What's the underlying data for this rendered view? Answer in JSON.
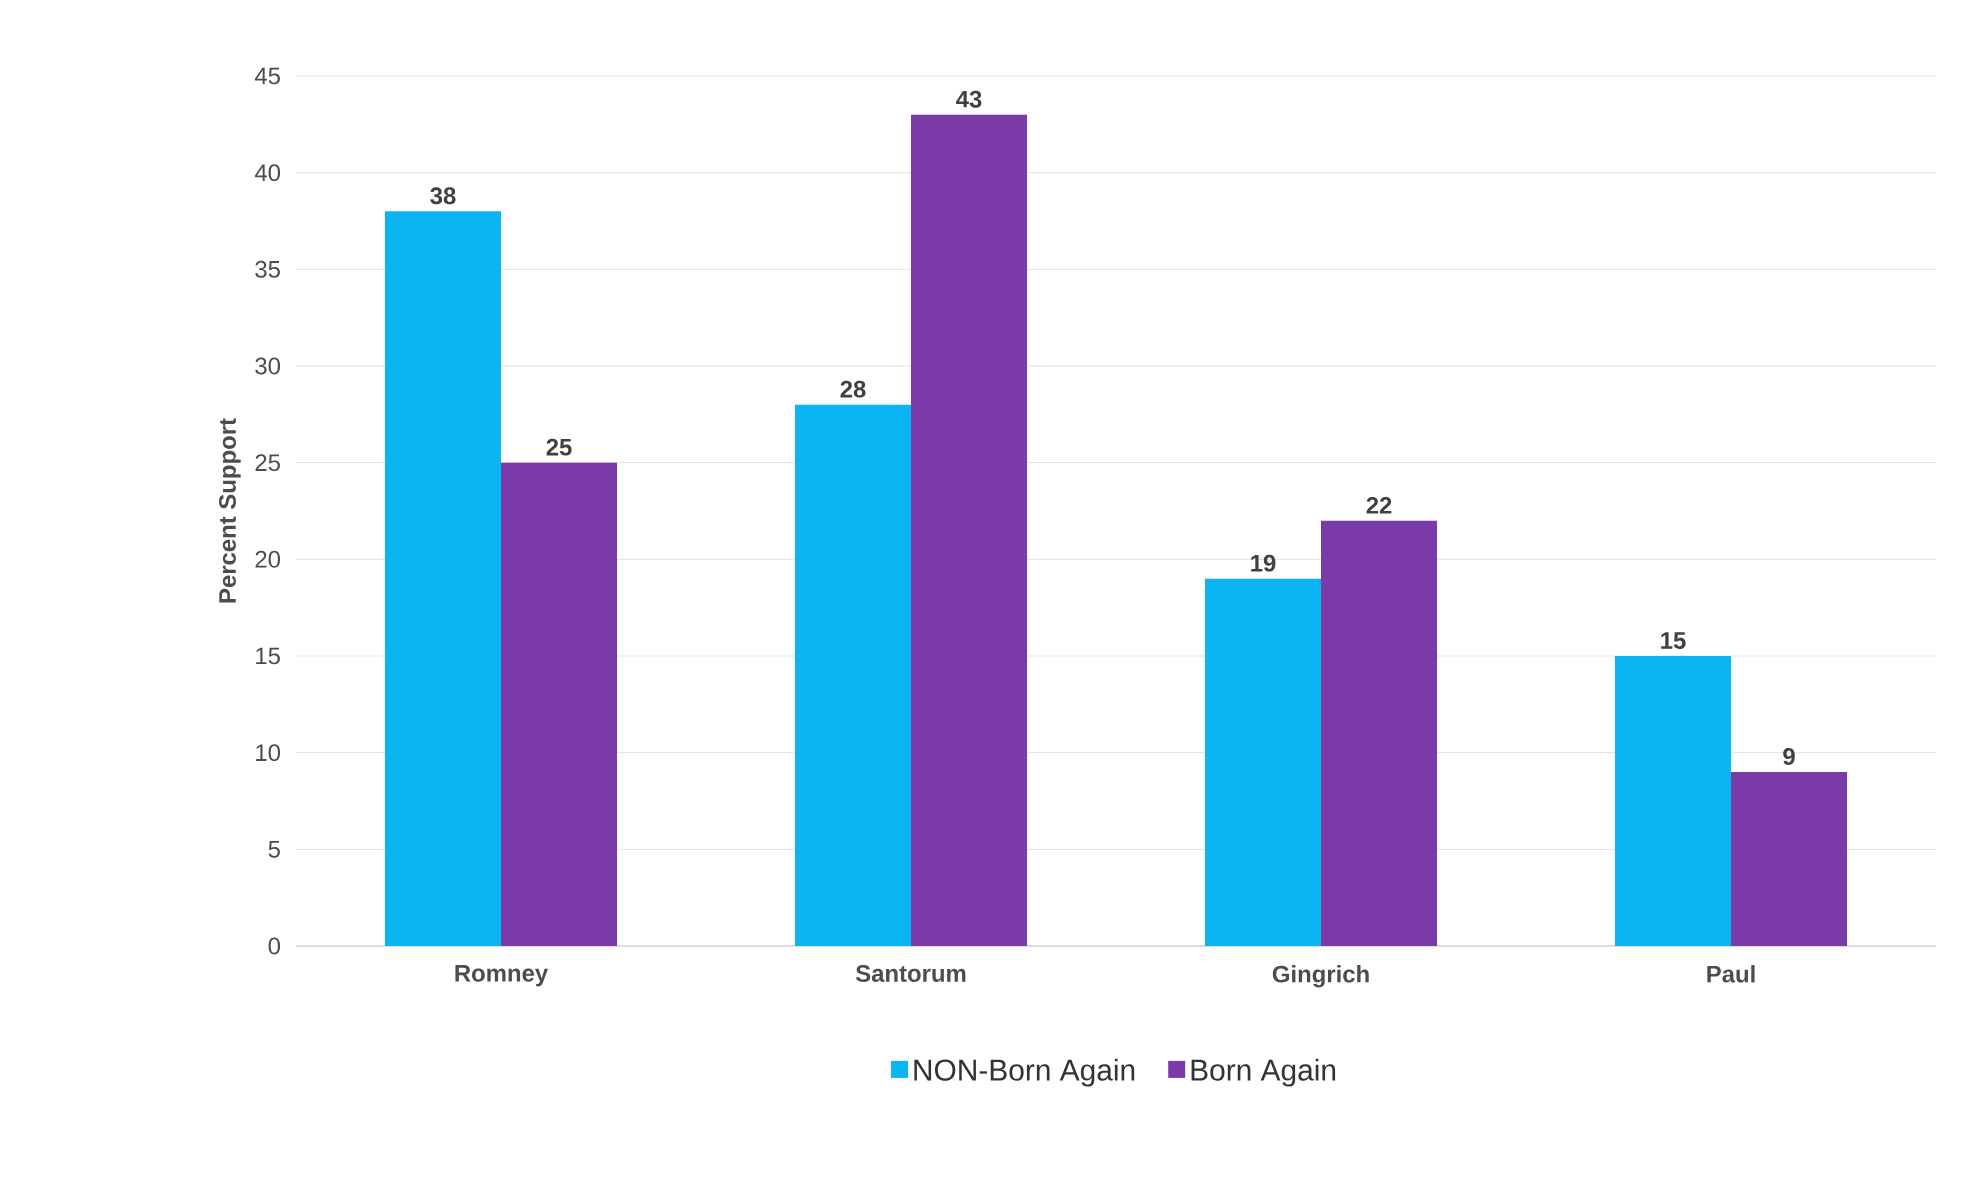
{
  "chart_data": {
    "type": "bar",
    "ylabel": "Percent Support",
    "categories": [
      "Romney",
      "Santorum",
      "Gingrich",
      "Paul"
    ],
    "series": [
      {
        "name": "NON-Born Again",
        "color": "#0bb5f2",
        "values": [
          38,
          28,
          19,
          15
        ]
      },
      {
        "name": "Born Again",
        "color": "#7a3aa8",
        "values": [
          25,
          43,
          22,
          9
        ]
      }
    ],
    "ylim": [
      0,
      45
    ],
    "yticks": [
      0,
      5,
      10,
      15,
      20,
      25,
      30,
      35,
      40,
      45
    ],
    "grid": "y",
    "legend": "bottom",
    "data_labels": true
  }
}
